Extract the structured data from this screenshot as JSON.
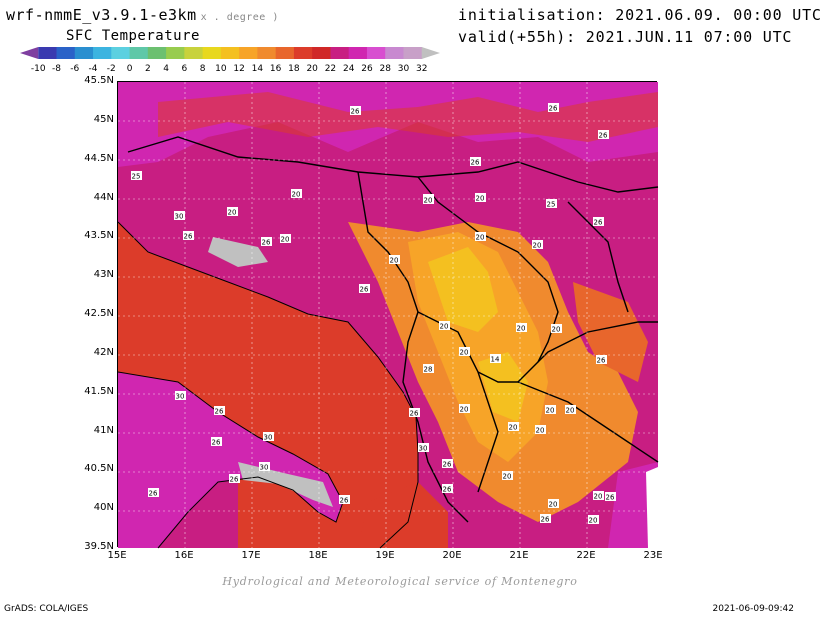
{
  "header": {
    "model": "wrf-nmmE_v3.9.1-e3km",
    "units": "x . degree )",
    "field": "SFC Temperature",
    "init": "initialisation: 2021.06.09. 00:00 UTC",
    "valid": "valid(+55h): 2021.JUN.11 07:00 UTC"
  },
  "colorbar": {
    "ticks": [
      "-10",
      "-8",
      "-6",
      "-4",
      "-2",
      "0",
      "2",
      "4",
      "6",
      "8",
      "10",
      "12",
      "14",
      "16",
      "18",
      "20",
      "22",
      "24",
      "26",
      "28",
      "30",
      "32"
    ],
    "colors": [
      "#7f3fa0",
      "#3a3ab0",
      "#2a62c8",
      "#2a8fd0",
      "#3cb4e0",
      "#5cd0e0",
      "#5fc8a8",
      "#6cc070",
      "#98cc4e",
      "#c8d23c",
      "#e8d81e",
      "#f4c020",
      "#f7a428",
      "#f08a2e",
      "#e8662c",
      "#dc3c2a",
      "#d02828",
      "#c81e82",
      "#d026b0",
      "#d84ed0",
      "#c889d0",
      "#c8a0c8",
      "#c0c0c0"
    ]
  },
  "map": {
    "lat_labels": [
      "45.5N",
      "45N",
      "44.5N",
      "44N",
      "43.5N",
      "43N",
      "42.5N",
      "42N",
      "41.5N",
      "41N",
      "40.5N",
      "40N",
      "39.5N"
    ],
    "lon_labels": [
      "15E",
      "16E",
      "17E",
      "18E",
      "19E",
      "20E",
      "21E",
      "22E",
      "23E"
    ],
    "contour_labels": [
      {
        "text": "26"
      },
      {
        "text": "26"
      },
      {
        "text": "26"
      },
      {
        "text": "26"
      },
      {
        "text": "25"
      },
      {
        "text": "20"
      },
      {
        "text": "20"
      },
      {
        "text": "20"
      },
      {
        "text": "30"
      },
      {
        "text": "26"
      },
      {
        "text": "26"
      },
      {
        "text": "20"
      },
      {
        "text": "20"
      },
      {
        "text": "20"
      },
      {
        "text": "26"
      },
      {
        "text": "20"
      },
      {
        "text": "20"
      },
      {
        "text": "20"
      },
      {
        "text": "26"
      },
      {
        "text": "20"
      },
      {
        "text": "20"
      },
      {
        "text": "20"
      },
      {
        "text": "20"
      },
      {
        "text": "14"
      },
      {
        "text": "20"
      },
      {
        "text": "26"
      },
      {
        "text": "28"
      },
      {
        "text": "30"
      },
      {
        "text": "26"
      },
      {
        "text": "26"
      },
      {
        "text": "20"
      },
      {
        "text": "26"
      },
      {
        "text": "20"
      },
      {
        "text": "20"
      },
      {
        "text": "20"
      },
      {
        "text": "30"
      },
      {
        "text": "26"
      },
      {
        "text": "30"
      },
      {
        "text": "26"
      },
      {
        "text": "30"
      },
      {
        "text": "26"
      },
      {
        "text": "26"
      },
      {
        "text": "26"
      },
      {
        "text": "20"
      },
      {
        "text": "26"
      },
      {
        "text": "20"
      },
      {
        "text": "20"
      },
      {
        "text": "20"
      },
      {
        "text": "26"
      },
      {
        "text": "25"
      }
    ]
  },
  "footer": {
    "credit": "Hydrological and Meteorological service of Montenegro",
    "left": "GrADS: COLA/IGES",
    "right": "2021-06-09-09:42"
  }
}
